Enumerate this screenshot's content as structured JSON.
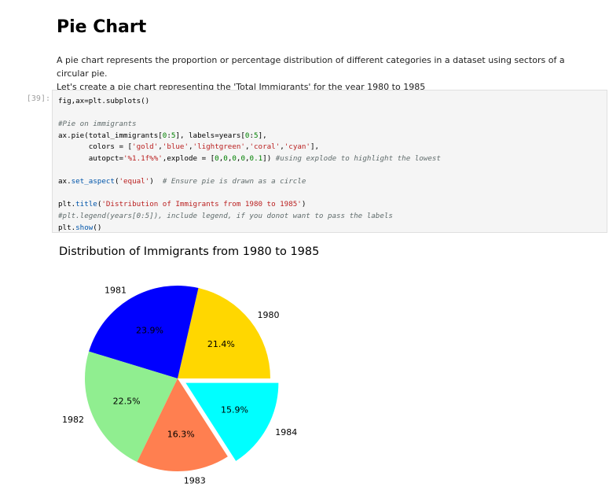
{
  "markdown": {
    "title": "Pie Chart",
    "paragraph1": "A pie chart represents the proportion or percentage distribution of different categories in a dataset using sectors of a circular pie.",
    "paragraph2": "Let's create a pie chart representing the 'Total Immigrants' for the year 1980 to 1985"
  },
  "cell": {
    "prompt": "[39]:",
    "lines": [
      [
        {
          "t": "fig,ax=plt.subplots()",
          "c": "c-pl"
        }
      ],
      [
        {
          "t": "",
          "c": "c-pl"
        }
      ],
      [
        {
          "t": "#Pie on immigrants",
          "c": "c-cm"
        }
      ],
      [
        {
          "t": "ax.pie(total_immigrants[",
          "c": "c-pl"
        },
        {
          "t": "0",
          "c": "c-nm"
        },
        {
          "t": ":",
          "c": "c-pl"
        },
        {
          "t": "5",
          "c": "c-nm"
        },
        {
          "t": "], labels=years[",
          "c": "c-pl"
        },
        {
          "t": "0",
          "c": "c-nm"
        },
        {
          "t": ":",
          "c": "c-pl"
        },
        {
          "t": "5",
          "c": "c-nm"
        },
        {
          "t": "],",
          "c": "c-pl"
        }
      ],
      [
        {
          "t": "       colors = [",
          "c": "c-pl"
        },
        {
          "t": "'gold'",
          "c": "c-st"
        },
        {
          "t": ",",
          "c": "c-pl"
        },
        {
          "t": "'blue'",
          "c": "c-st"
        },
        {
          "t": ",",
          "c": "c-pl"
        },
        {
          "t": "'lightgreen'",
          "c": "c-st"
        },
        {
          "t": ",",
          "c": "c-pl"
        },
        {
          "t": "'coral'",
          "c": "c-st"
        },
        {
          "t": ",",
          "c": "c-pl"
        },
        {
          "t": "'cyan'",
          "c": "c-st"
        },
        {
          "t": "],",
          "c": "c-pl"
        }
      ],
      [
        {
          "t": "       autopct=",
          "c": "c-pl"
        },
        {
          "t": "'%1.1f%%'",
          "c": "c-st"
        },
        {
          "t": ",explode = [",
          "c": "c-pl"
        },
        {
          "t": "0",
          "c": "c-nm"
        },
        {
          "t": ",",
          "c": "c-pl"
        },
        {
          "t": "0",
          "c": "c-nm"
        },
        {
          "t": ",",
          "c": "c-pl"
        },
        {
          "t": "0",
          "c": "c-nm"
        },
        {
          "t": ",",
          "c": "c-pl"
        },
        {
          "t": "0",
          "c": "c-nm"
        },
        {
          "t": ",",
          "c": "c-pl"
        },
        {
          "t": "0.1",
          "c": "c-nm"
        },
        {
          "t": "]) ",
          "c": "c-pl"
        },
        {
          "t": "#using explode to highlight the lowest",
          "c": "c-cm"
        }
      ],
      [
        {
          "t": "",
          "c": "c-pl"
        }
      ],
      [
        {
          "t": "ax.",
          "c": "c-pl"
        },
        {
          "t": "set_aspect",
          "c": "c-fn"
        },
        {
          "t": "(",
          "c": "c-pl"
        },
        {
          "t": "'equal'",
          "c": "c-st"
        },
        {
          "t": ")  ",
          "c": "c-pl"
        },
        {
          "t": "# Ensure pie is drawn as a circle",
          "c": "c-cm"
        }
      ],
      [
        {
          "t": "",
          "c": "c-pl"
        }
      ],
      [
        {
          "t": "plt.",
          "c": "c-pl"
        },
        {
          "t": "title",
          "c": "c-fn"
        },
        {
          "t": "(",
          "c": "c-pl"
        },
        {
          "t": "'Distribution of Immigrants from 1980 to 1985'",
          "c": "c-st"
        },
        {
          "t": ")",
          "c": "c-pl"
        }
      ],
      [
        {
          "t": "#plt.legend(years[0:5]), include legend, if you donot want to pass the labels",
          "c": "c-cm"
        }
      ],
      [
        {
          "t": "plt.",
          "c": "c-pl"
        },
        {
          "t": "show",
          "c": "c-fn"
        },
        {
          "t": "()",
          "c": "c-pl"
        }
      ]
    ]
  },
  "chart_data": {
    "type": "pie",
    "title": "Distribution of Immigrants from 1980 to 1985",
    "categories": [
      "1980",
      "1981",
      "1982",
      "1983",
      "1984"
    ],
    "values": [
      21.4,
      23.9,
      22.5,
      16.3,
      15.9
    ],
    "value_labels": [
      "21.4%",
      "23.9%",
      "22.5%",
      "16.3%",
      "15.9%"
    ],
    "colors": [
      "#ffd700",
      "#0000ff",
      "#90ee90",
      "#ff7f50",
      "#00ffff"
    ],
    "explode": [
      0,
      0,
      0,
      0,
      0.1
    ],
    "start_angle": 0,
    "direction": "counterclockwise",
    "legend": "none"
  }
}
